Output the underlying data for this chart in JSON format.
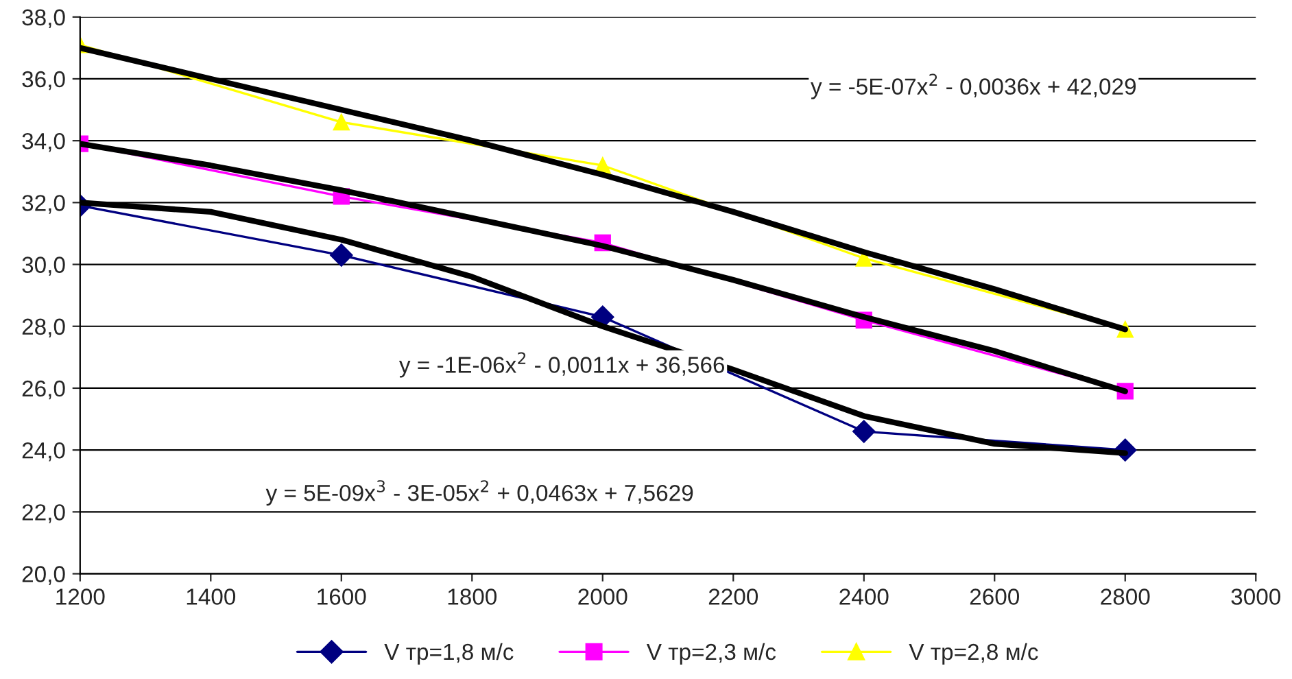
{
  "chart_data": {
    "type": "line",
    "xlim": [
      1200,
      3000
    ],
    "xticks": [
      1200,
      1400,
      1600,
      1800,
      2000,
      2200,
      2400,
      2600,
      2800,
      3000
    ],
    "ylim": [
      20,
      38
    ],
    "yticks": [
      {
        "value": 20,
        "label": "20,0"
      },
      {
        "value": 22,
        "label": "22,0"
      },
      {
        "value": 24,
        "label": "24,0"
      },
      {
        "value": 26,
        "label": "26,0"
      },
      {
        "value": 28,
        "label": "28,0"
      },
      {
        "value": 30,
        "label": "30,0"
      },
      {
        "value": 32,
        "label": "32,0"
      },
      {
        "value": 34,
        "label": "34,0"
      },
      {
        "value": 36,
        "label": "36,0"
      },
      {
        "value": 38,
        "label": "38,0"
      }
    ],
    "grid": "y",
    "legend": "bottom",
    "series": [
      {
        "name": "V тр=1,8 м/с",
        "color": "#000080",
        "marker": "diamond",
        "x": [
          1200,
          1600,
          2000,
          2400,
          2800
        ],
        "values": [
          31.9,
          30.3,
          28.3,
          24.6,
          24.0
        ]
      },
      {
        "name": "V тр=2,3 м/с",
        "color": "#ff00ff",
        "marker": "square",
        "x": [
          1200,
          1600,
          2000,
          2400,
          2800
        ],
        "values": [
          33.9,
          32.2,
          30.7,
          28.2,
          25.9
        ]
      },
      {
        "name": "V тр=2,8 м/с",
        "color": "#ffff00",
        "marker": "triangle",
        "x": [
          1200,
          1600,
          2000,
          2400,
          2800
        ],
        "values": [
          37.1,
          34.6,
          33.2,
          30.2,
          27.9
        ]
      },
      {
        "type": "line",
        "color": "#000000",
        "marker": "none",
        "x": [
          1200,
          1400,
          1600,
          1800,
          2000,
          2200,
          2400,
          2600,
          2800
        ],
        "values": [
          32.0,
          31.7,
          30.8,
          29.6,
          28.0,
          26.6,
          25.1,
          24.2,
          23.9
        ]
      },
      {
        "type": "line",
        "color": "#000000",
        "marker": "none",
        "x": [
          1200,
          1400,
          1600,
          1800,
          2000,
          2200,
          2400,
          2600,
          2800
        ],
        "values": [
          33.9,
          33.2,
          32.4,
          31.5,
          30.6,
          29.5,
          28.3,
          27.2,
          25.9
        ]
      },
      {
        "type": "line",
        "color": "#000000",
        "marker": "none",
        "x": [
          1200,
          1400,
          1600,
          1800,
          2000,
          2200,
          2400,
          2600,
          2800
        ],
        "values": [
          37.0,
          36.0,
          35.0,
          34.0,
          32.9,
          31.7,
          30.4,
          29.2,
          27.9
        ]
      }
    ],
    "annotations": [
      "y = -5E-07x$^{2}$ - 0,0036x + 42,029",
      "y = -1E-06x$^{2}$ - 0,0011x + 36,566",
      "y = 5E-09x$^{3}$ - 3E-05x$^{2}$ + 0,0463x + 7,5629"
    ]
  }
}
